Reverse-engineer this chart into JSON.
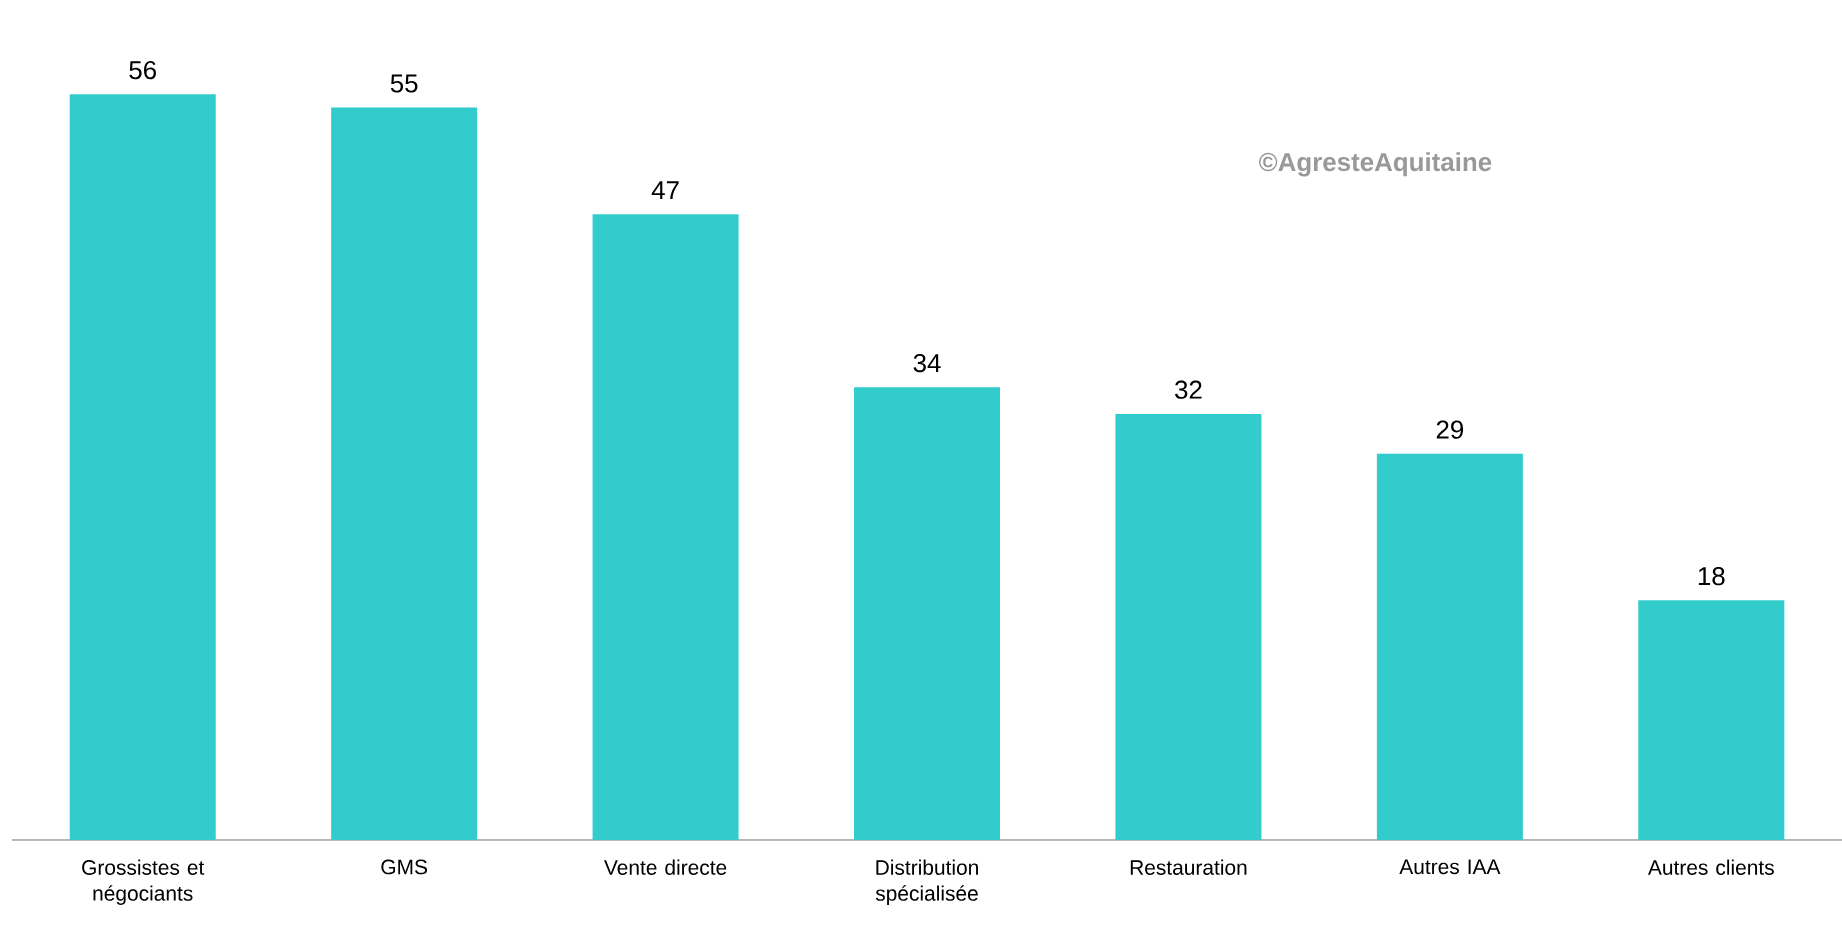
{
  "chart_data": {
    "type": "bar",
    "categories": [
      "Grossistes et négociants",
      "GMS",
      "Vente directe",
      "Distribution spécialisée",
      "Restauration",
      "Autres IAA",
      "Autres clients"
    ],
    "values": [
      56,
      55,
      47,
      34,
      32,
      29,
      18
    ],
    "color": "#33cccc",
    "data_labels": true,
    "annotations": [
      "©AgresteAquitaine"
    ]
  }
}
